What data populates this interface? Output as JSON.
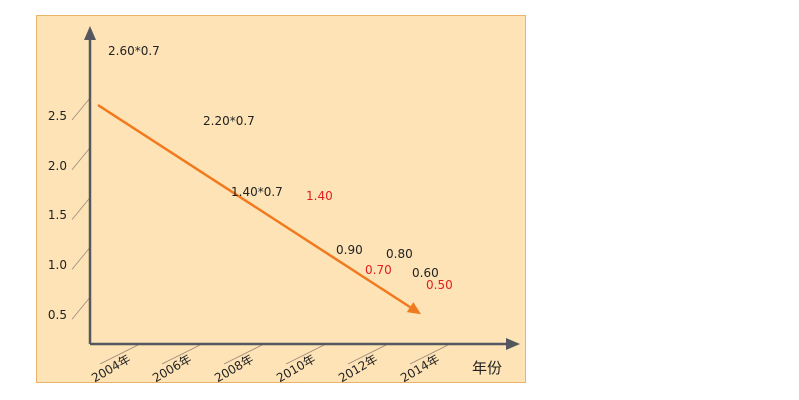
{
  "chart_data": {
    "type": "line",
    "xlabel": "年份",
    "ylabel": "",
    "y_ticks": [
      "0.5",
      "1.0",
      "1.5",
      "2.0",
      "2.5"
    ],
    "x_tick_labels": [
      "2004年",
      "2006年",
      "2008年",
      "2010年",
      "2012年",
      "2014年"
    ],
    "series": [
      {
        "color": "#f07a1e",
        "x": [
          2004,
          2014
        ],
        "y": [
          2.6,
          0.5
        ]
      }
    ],
    "annotations": [
      {
        "text": "2.60*0.7",
        "color": "#222222"
      },
      {
        "text": "2.20*0.7",
        "color": "#222222"
      },
      {
        "text": "1.40*0.7",
        "color": "#222222"
      },
      {
        "text": "1.40",
        "color": "#e0201e"
      },
      {
        "text": "0.90",
        "color": "#222222"
      },
      {
        "text": "0.80",
        "color": "#222222"
      },
      {
        "text": "0.70",
        "color": "#e0201e"
      },
      {
        "text": "0.60",
        "color": "#222222"
      },
      {
        "text": "0.50",
        "color": "#e0201e"
      }
    ],
    "grid": false,
    "colors": {
      "background": "#fde3b6",
      "axis": "#55575f",
      "line": "#f07a1e",
      "highlight": "#e0201e"
    }
  }
}
